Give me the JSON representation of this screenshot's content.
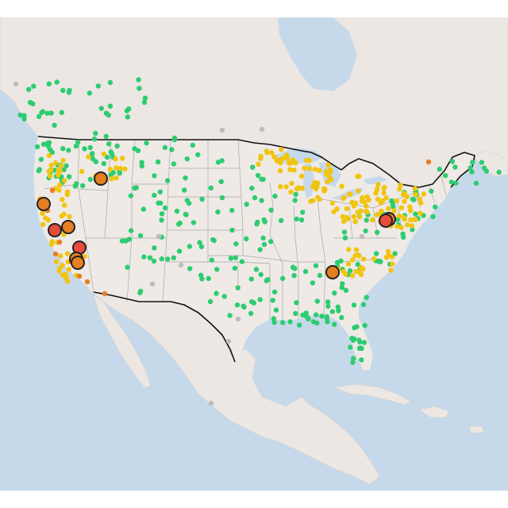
{
  "map": {
    "basemap": "light-gray-canvas",
    "colors": {
      "water": "#c6d9ea",
      "land": "#efeae6",
      "land_other": "#ece7e3",
      "us_border": "#111111",
      "state_border": "#a8a8a8",
      "good": "#2ecc71",
      "moderate": "#f1c40f",
      "usg": "#e67e22",
      "unhealthy": "#e74c3c",
      "no_data": "#bdbdbd",
      "highlight_outline": "#222222"
    },
    "categories": [
      "good",
      "moderate",
      "unhealthy-for-sensitive-groups",
      "unhealthy",
      "no-data"
    ],
    "category_counts": {
      "good": 330,
      "moderate": 230,
      "usg": 12,
      "unhealthy": 4,
      "no_data": 10
    }
  }
}
